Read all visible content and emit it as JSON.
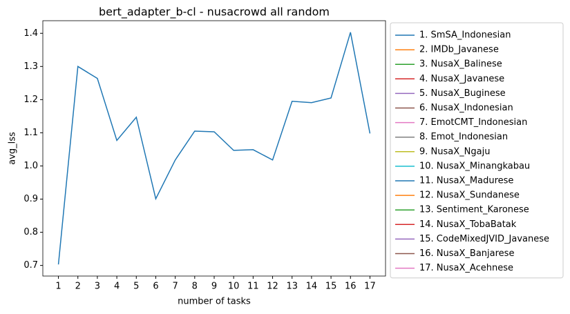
{
  "chart_data": {
    "type": "line",
    "title": "bert_adapter_b-cl - nusacrowd all random",
    "xlabel": "number of tasks",
    "ylabel": "avg_lss",
    "x": [
      1,
      2,
      3,
      4,
      5,
      6,
      7,
      8,
      9,
      10,
      11,
      12,
      13,
      14,
      15,
      16,
      17
    ],
    "xlim": [
      0.2,
      17.8
    ],
    "xticks": [
      1,
      2,
      3,
      4,
      5,
      6,
      7,
      8,
      9,
      10,
      11,
      12,
      13,
      14,
      15,
      16,
      17
    ],
    "ylim": [
      0.668,
      1.438
    ],
    "yticks": [
      0.7,
      0.8,
      0.9,
      {
        "value": 1.0,
        "label": "1.0"
      },
      1.1,
      1.2,
      1.3,
      1.4
    ],
    "grid": false,
    "legend": "outside right",
    "series": [
      {
        "name": "1. SmSA_Indonesian",
        "color": "#1f77b4",
        "values": [
          0.703,
          1.3,
          1.264,
          1.077,
          1.147,
          0.901,
          1.018,
          1.105,
          1.103,
          1.047,
          1.049,
          1.018,
          1.195,
          1.191,
          1.205,
          1.403,
          1.098
        ]
      },
      {
        "name": "2. IMDb_Javanese",
        "color": "#ff7f0e",
        "values": [
          null,
          null,
          null,
          null,
          null,
          null,
          null,
          null,
          null,
          null,
          null,
          null,
          null,
          null,
          null,
          null,
          null
        ]
      },
      {
        "name": "3. NusaX_Balinese",
        "color": "#2ca02c",
        "values": [
          null,
          null,
          null,
          null,
          null,
          null,
          null,
          null,
          null,
          null,
          null,
          null,
          null,
          null,
          null,
          null,
          null
        ]
      },
      {
        "name": "4. NusaX_Javanese",
        "color": "#d62728",
        "values": [
          null,
          null,
          null,
          null,
          null,
          null,
          null,
          null,
          null,
          null,
          null,
          null,
          null,
          null,
          null,
          null,
          null
        ]
      },
      {
        "name": "5. NusaX_Buginese",
        "color": "#9467bd",
        "values": [
          null,
          null,
          null,
          null,
          null,
          null,
          null,
          null,
          null,
          null,
          null,
          null,
          null,
          null,
          null,
          null,
          null
        ]
      },
      {
        "name": "6. NusaX_Indonesian",
        "color": "#8c564b",
        "values": [
          null,
          null,
          null,
          null,
          null,
          null,
          null,
          null,
          null,
          null,
          null,
          null,
          null,
          null,
          null,
          null,
          null
        ]
      },
      {
        "name": "7. EmotCMT_Indonesian",
        "color": "#e377c2",
        "values": [
          null,
          null,
          null,
          null,
          null,
          null,
          null,
          null,
          null,
          null,
          null,
          null,
          null,
          null,
          null,
          null,
          null
        ]
      },
      {
        "name": "8. Emot_Indonesian",
        "color": "#7f7f7f",
        "values": [
          null,
          null,
          null,
          null,
          null,
          null,
          null,
          null,
          null,
          null,
          null,
          null,
          null,
          null,
          null,
          null,
          null
        ]
      },
      {
        "name": "9. NusaX_Ngaju",
        "color": "#bcbd22",
        "values": [
          null,
          null,
          null,
          null,
          null,
          null,
          null,
          null,
          null,
          null,
          null,
          null,
          null,
          null,
          null,
          null,
          null
        ]
      },
      {
        "name": "10. NusaX_Minangkabau",
        "color": "#17becf",
        "values": [
          null,
          null,
          null,
          null,
          null,
          null,
          null,
          null,
          null,
          null,
          null,
          null,
          null,
          null,
          null,
          null,
          null
        ]
      },
      {
        "name": "11. NusaX_Madurese",
        "color": "#1f77b4",
        "values": [
          null,
          null,
          null,
          null,
          null,
          null,
          null,
          null,
          null,
          null,
          null,
          null,
          null,
          null,
          null,
          null,
          null
        ]
      },
      {
        "name": "12. NusaX_Sundanese",
        "color": "#ff7f0e",
        "values": [
          null,
          null,
          null,
          null,
          null,
          null,
          null,
          null,
          null,
          null,
          null,
          null,
          null,
          null,
          null,
          null,
          null
        ]
      },
      {
        "name": "13. Sentiment_Karonese",
        "color": "#2ca02c",
        "values": [
          null,
          null,
          null,
          null,
          null,
          null,
          null,
          null,
          null,
          null,
          null,
          null,
          null,
          null,
          null,
          null,
          null
        ]
      },
      {
        "name": "14. NusaX_TobaBatak",
        "color": "#d62728",
        "values": [
          null,
          null,
          null,
          null,
          null,
          null,
          null,
          null,
          null,
          null,
          null,
          null,
          null,
          null,
          null,
          null,
          null
        ]
      },
      {
        "name": "15. CodeMixedJVID_Javanese",
        "color": "#9467bd",
        "values": [
          null,
          null,
          null,
          null,
          null,
          null,
          null,
          null,
          null,
          null,
          null,
          null,
          null,
          null,
          null,
          null,
          null
        ]
      },
      {
        "name": "16. NusaX_Banjarese",
        "color": "#8c564b",
        "values": [
          null,
          null,
          null,
          null,
          null,
          null,
          null,
          null,
          null,
          null,
          null,
          null,
          null,
          null,
          null,
          null,
          null
        ]
      },
      {
        "name": "17. NusaX_Acehnese",
        "color": "#e377c2",
        "values": [
          null,
          null,
          null,
          null,
          null,
          null,
          null,
          null,
          null,
          null,
          null,
          null,
          null,
          null,
          null,
          null,
          null
        ]
      }
    ]
  }
}
